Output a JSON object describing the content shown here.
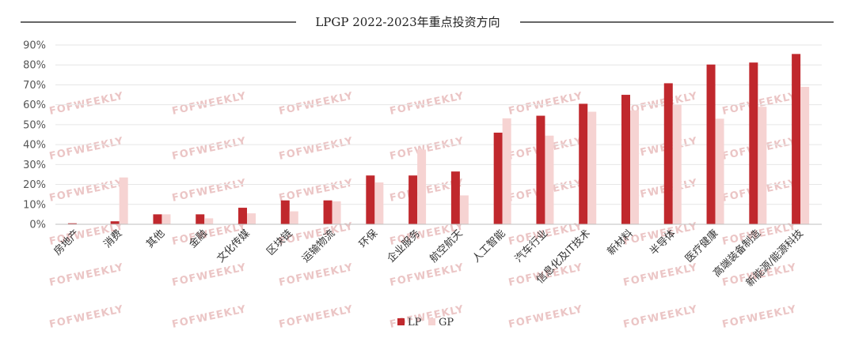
{
  "watermark": "FOFWEEKLY",
  "colors": {
    "lp": "#c0282d",
    "gp": "#f6d3d2",
    "grid": "#e6e6e6",
    "title_rule": "#333333"
  },
  "chart_data": {
    "type": "bar",
    "title": "LPGP 2022-2023年重点投资方向",
    "categories": [
      "房地产",
      "消费",
      "其他",
      "金融",
      "文化传媒",
      "区块链",
      "运输物流",
      "环保",
      "企业服务",
      "航空航天",
      "人工智能",
      "汽车行业",
      "信息化及IT技术",
      "新材料",
      "半导体",
      "医疗健康",
      "高端装备制造",
      "新能源/能源科技"
    ],
    "series": [
      {
        "name": "LP",
        "values": [
          0.5,
          1.5,
          5,
          5,
          8.3,
          12,
          12,
          24.5,
          24.5,
          26.5,
          46,
          54.5,
          60.5,
          65,
          70.8,
          80.2,
          81.2,
          85.5
        ]
      },
      {
        "name": "GP",
        "values": [
          0,
          23.5,
          5,
          3,
          5.5,
          6.5,
          11.5,
          21,
          37.5,
          14.5,
          53.2,
          44.5,
          56.5,
          57.2,
          60,
          53,
          59,
          69
        ]
      }
    ],
    "ylim": [
      0,
      90
    ],
    "yticks": [
      "0%",
      "10%",
      "20%",
      "30%",
      "40%",
      "50%",
      "60%",
      "70%",
      "80%",
      "90%"
    ],
    "grid": true,
    "legend": "bottom-center"
  }
}
